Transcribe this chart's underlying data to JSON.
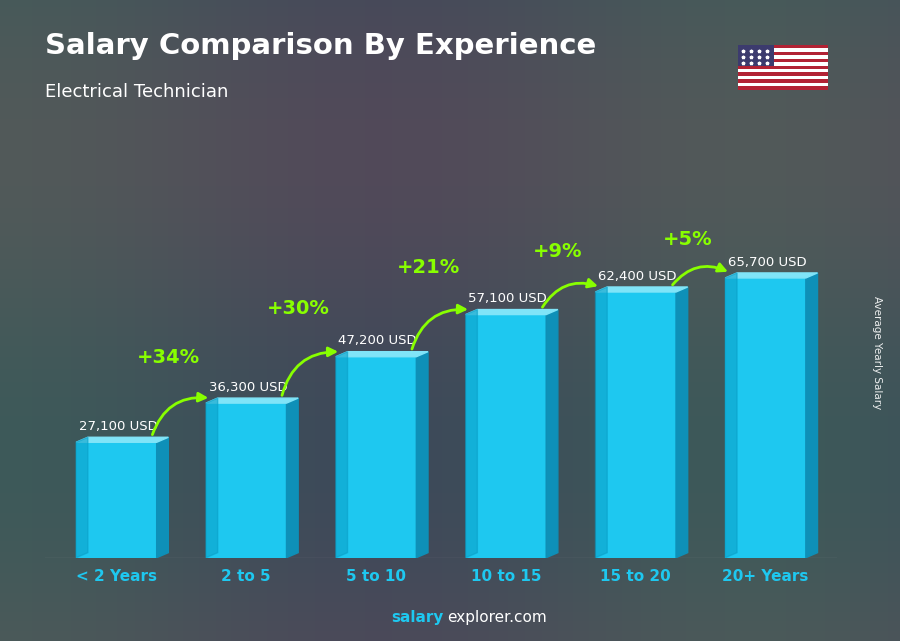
{
  "title": "Salary Comparison By Experience",
  "subtitle": "Electrical Technician",
  "categories": [
    "< 2 Years",
    "2 to 5",
    "5 to 10",
    "10 to 15",
    "15 to 20",
    "20+ Years"
  ],
  "values": [
    27100,
    36300,
    47200,
    57100,
    62400,
    65700
  ],
  "labels": [
    "27,100 USD",
    "36,300 USD",
    "47,200 USD",
    "57,100 USD",
    "62,400 USD",
    "65,700 USD"
  ],
  "pct_labels": [
    "+34%",
    "+30%",
    "+21%",
    "+9%",
    "+5%"
  ],
  "bar_color_face": "#1EC8F0",
  "bar_color_side": "#0E90B8",
  "bar_color_top": "#80E4F8",
  "bar_color_left": "#0AA0C8",
  "bg_color": "#3a4a5a",
  "title_color": "#ffffff",
  "subtitle_color": "#ffffff",
  "label_color": "#ffffff",
  "pct_color": "#88ff00",
  "tick_color": "#1EC8F0",
  "footer_text_normal": "explorer.com",
  "footer_text_bold": "salary",
  "right_label": "Average Yearly Salary",
  "figsize": [
    9.0,
    6.41
  ],
  "dpi": 100
}
